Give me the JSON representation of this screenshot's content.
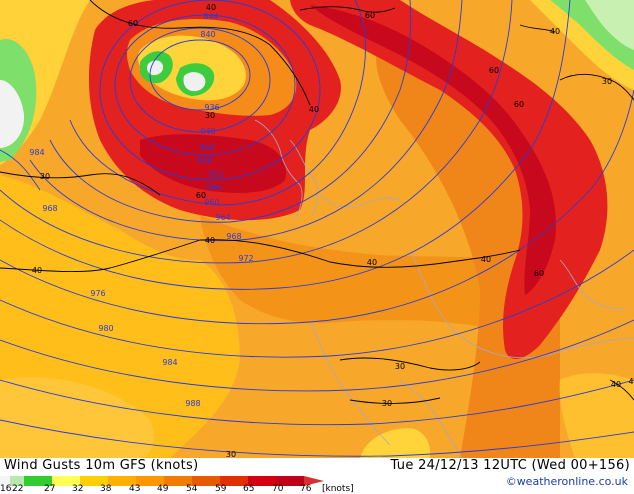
{
  "map": {
    "isobars": [
      {
        "text": "844"
      },
      {
        "text": "840"
      },
      {
        "text": "936"
      },
      {
        "text": "940"
      },
      {
        "text": "944"
      },
      {
        "text": "948"
      },
      {
        "text": "952"
      },
      {
        "text": "956"
      },
      {
        "text": "960"
      },
      {
        "text": "964"
      },
      {
        "text": "968"
      },
      {
        "text": "972"
      },
      {
        "text": "976"
      },
      {
        "text": "980"
      },
      {
        "text": "984"
      },
      {
        "text": "988"
      },
      {
        "text": "984"
      },
      {
        "text": "968"
      }
    ],
    "gust_labels": [
      {
        "text": "40"
      },
      {
        "text": "60"
      },
      {
        "text": "30"
      },
      {
        "text": "40"
      },
      {
        "text": "60"
      },
      {
        "text": "60"
      },
      {
        "text": "40"
      },
      {
        "text": "30"
      },
      {
        "text": "60"
      },
      {
        "text": "60"
      },
      {
        "text": "40"
      },
      {
        "text": "40"
      },
      {
        "text": "40"
      },
      {
        "text": "40"
      },
      {
        "text": "30"
      },
      {
        "text": "30"
      },
      {
        "text": "30"
      },
      {
        "text": "60"
      },
      {
        "text": "30"
      },
      {
        "text": "40"
      },
      {
        "text": "4"
      }
    ]
  },
  "footer": {
    "title": "Wind Gusts 10m GFS (knots)",
    "valid": "Tue 24/12/13 12UTC  (Wed 00+156)",
    "copyright": "©weatheronline.co.uk"
  },
  "legend": {
    "labels": [
      "16",
      "22",
      "27",
      "32",
      "38",
      "43",
      "49",
      "54",
      "59",
      "65",
      "70",
      "76",
      "[knots]"
    ],
    "colors": [
      "#f5f5f5",
      "#b8e8b0",
      "#33cc33",
      "#ffff55",
      "#ffd000",
      "#ffb000",
      "#ff9800",
      "#f27c00",
      "#e85a00",
      "#e03000",
      "#d40010",
      "#c00018",
      "#d83030"
    ]
  },
  "colors": {
    "gust_low": "#ffb700",
    "gust_mid": "#f59a10",
    "gust_high": "#f08016",
    "gust_red": "#e41a22",
    "gust_darkred": "#cc0a1a",
    "isobar": "#2a3bd6",
    "contour": "#000000",
    "border": "#a8a8c8"
  }
}
